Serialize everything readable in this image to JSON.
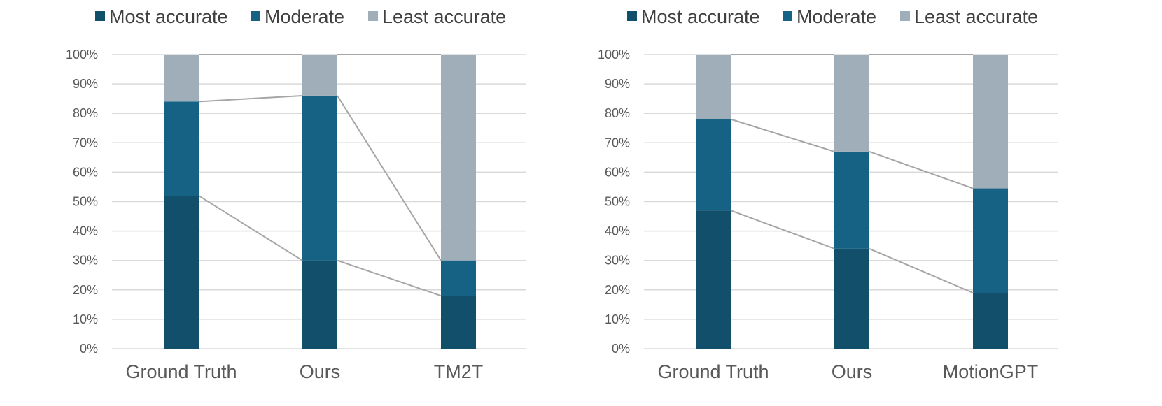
{
  "colors": {
    "most": "#114f6b",
    "moderate": "#156285",
    "least": "#a0aeb9",
    "grid": "#d9d9d9",
    "connector": "#a6a6a6"
  },
  "chart_data": [
    {
      "type": "bar",
      "stacked": true,
      "percent": true,
      "legend_position": "top",
      "grid": true,
      "ylim": [
        0,
        100
      ],
      "yticks": [
        "0%",
        "10%",
        "20%",
        "30%",
        "40%",
        "50%",
        "60%",
        "70%",
        "80%",
        "90%",
        "100%"
      ],
      "categories": [
        "Ground Truth",
        "Ours",
        "TM2T"
      ],
      "series": [
        {
          "name": "Most accurate",
          "values": [
            52,
            30,
            18
          ]
        },
        {
          "name": "Moderate",
          "values": [
            32,
            56,
            12
          ]
        },
        {
          "name": "Least accurate",
          "values": [
            16,
            14,
            70
          ]
        }
      ]
    },
    {
      "type": "bar",
      "stacked": true,
      "percent": true,
      "legend_position": "top",
      "grid": true,
      "ylim": [
        0,
        100
      ],
      "yticks": [
        "0%",
        "10%",
        "20%",
        "30%",
        "40%",
        "50%",
        "60%",
        "70%",
        "80%",
        "90%",
        "100%"
      ],
      "categories": [
        "Ground Truth",
        "Ours",
        "MotionGPT"
      ],
      "series": [
        {
          "name": "Most accurate",
          "values": [
            47,
            34,
            19
          ]
        },
        {
          "name": "Moderate",
          "values": [
            31,
            33,
            35.5
          ]
        },
        {
          "name": "Least accurate",
          "values": [
            22,
            33,
            45.5
          ]
        }
      ]
    }
  ]
}
